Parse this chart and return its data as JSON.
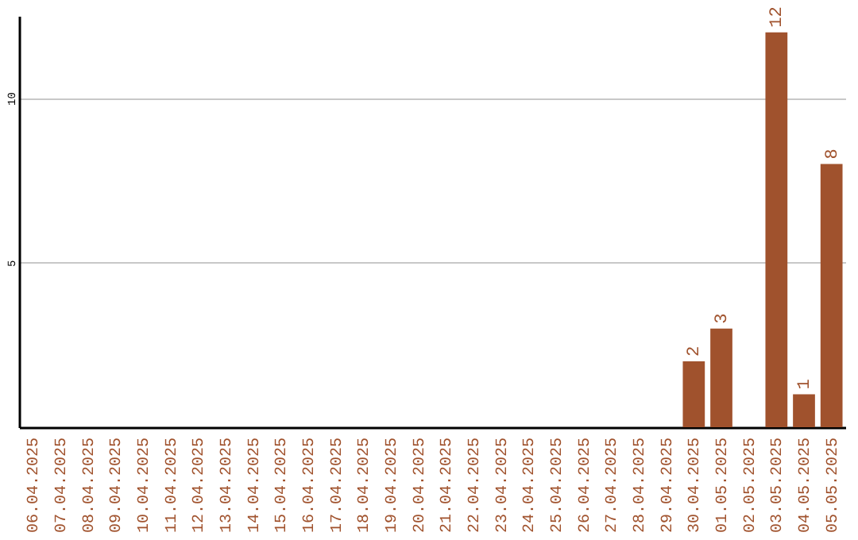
{
  "chart_data": {
    "type": "bar",
    "categories": [
      "06.04.2025",
      "07.04.2025",
      "08.04.2025",
      "09.04.2025",
      "10.04.2025",
      "11.04.2025",
      "12.04.2025",
      "13.04.2025",
      "14.04.2025",
      "15.04.2025",
      "16.04.2025",
      "17.04.2025",
      "18.04.2025",
      "19.04.2025",
      "20.04.2025",
      "21.04.2025",
      "22.04.2025",
      "23.04.2025",
      "24.04.2025",
      "25.04.2025",
      "26.04.2025",
      "27.04.2025",
      "28.04.2025",
      "29.04.2025",
      "30.04.2025",
      "01.05.2025",
      "02.05.2025",
      "03.05.2025",
      "04.05.2025",
      "05.05.2025"
    ],
    "values": [
      0,
      0,
      0,
      0,
      0,
      0,
      0,
      0,
      0,
      0,
      0,
      0,
      0,
      0,
      0,
      0,
      0,
      0,
      0,
      0,
      0,
      0,
      0,
      0,
      2,
      3,
      0,
      12,
      1,
      8
    ],
    "value_labels": [
      null,
      null,
      null,
      null,
      null,
      null,
      null,
      null,
      null,
      null,
      null,
      null,
      null,
      null,
      null,
      null,
      null,
      null,
      null,
      null,
      null,
      null,
      null,
      null,
      "2",
      "3",
      null,
      "12",
      "1",
      "8"
    ],
    "color": "#a0522d",
    "ylim": [
      0,
      12.5
    ],
    "yticks": [
      5,
      10
    ],
    "grid": "y"
  }
}
